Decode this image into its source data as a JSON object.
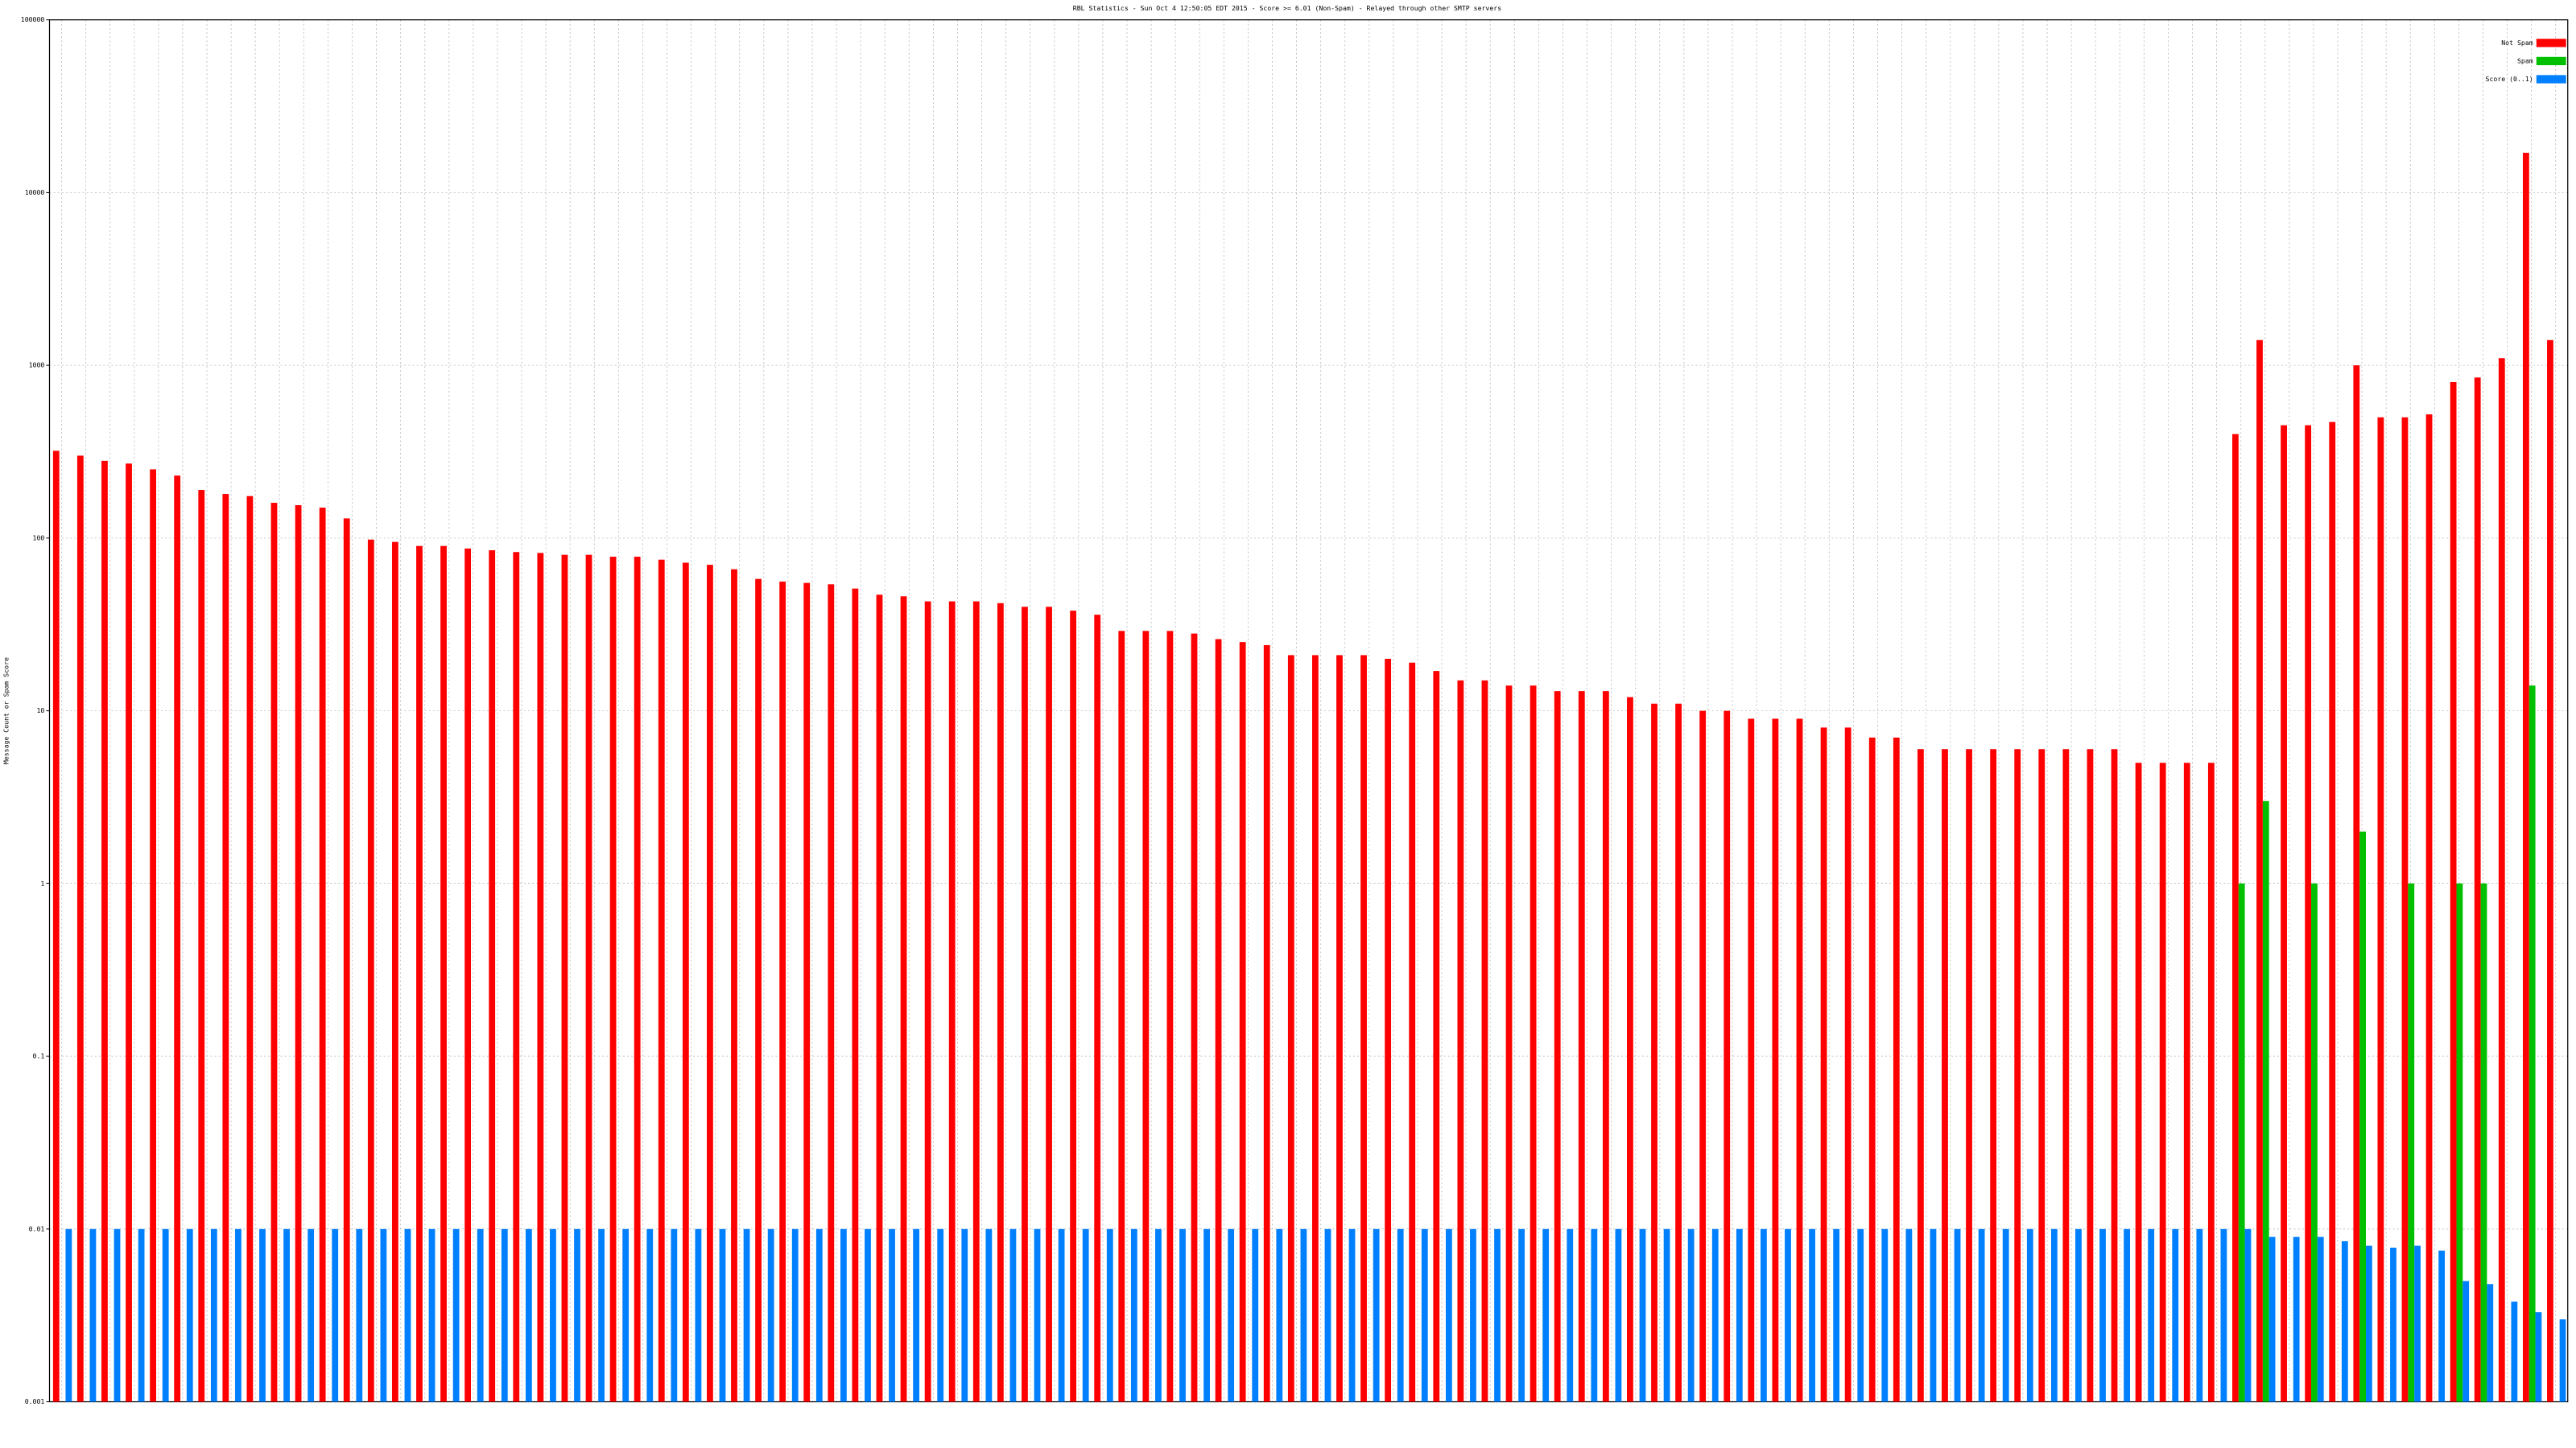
{
  "chart_data": {
    "type": "bar",
    "log_y": true,
    "grid": true,
    "legend": "upper right",
    "title": "RBL Statistics - Sun Oct  4 12:50:05 EDT 2015 - Score >= 6.01 (Non-Spam) - Relayed through other SMTP servers",
    "y_label": "Message Count or Spam Score",
    "ylim": [
      0.001,
      100000
    ],
    "yticks": [
      0.001,
      0.01,
      0.1,
      1,
      10,
      100,
      1000,
      10000,
      100000
    ],
    "categories": [
      null,
      null,
      null,
      null,
      null,
      null,
      null,
      null,
      null,
      null,
      null,
      null,
      null,
      null,
      null,
      null,
      null,
      null,
      null,
      null,
      null,
      null,
      null,
      null,
      null,
      null,
      null,
      null,
      null,
      null,
      null,
      null,
      null,
      null,
      null,
      null,
      null,
      null,
      null,
      null,
      null,
      null,
      null,
      null,
      null,
      null,
      null,
      null,
      null,
      null,
      null,
      null,
      null,
      null,
      null,
      null,
      null,
      null,
      null,
      null,
      null,
      null,
      null,
      null,
      null,
      null,
      null,
      null,
      null,
      null,
      null,
      null,
      null,
      null,
      null,
      null,
      null,
      null,
      null,
      null,
      null,
      null,
      null,
      null,
      null,
      null,
      null,
      null,
      null,
      null,
      null,
      null,
      null,
      null,
      null,
      null,
      null,
      null,
      null,
      null,
      null,
      null,
      null,
      null
    ],
    "series": [
      {
        "name": "Not Spam",
        "color": "#ff0000",
        "values": [
          320,
          300,
          280,
          270,
          250,
          230,
          190,
          180,
          175,
          160,
          155,
          150,
          130,
          98,
          95,
          90,
          90,
          87,
          85,
          83,
          82,
          80,
          80,
          78,
          78,
          75,
          72,
          70,
          66,
          58,
          56,
          55,
          54,
          51,
          47,
          46,
          43,
          43,
          43,
          42,
          40,
          40,
          38,
          36,
          29,
          29,
          29,
          28,
          26,
          25,
          24,
          21,
          21,
          21,
          21,
          20,
          19,
          17,
          15,
          15,
          14,
          14,
          13,
          13,
          13,
          12,
          11,
          11,
          10,
          10,
          9,
          9,
          9,
          8,
          8,
          7,
          7,
          6,
          6,
          6,
          6,
          6,
          6,
          6,
          6,
          6,
          5,
          5,
          5,
          5,
          400,
          1400,
          450,
          450,
          470,
          1000,
          500,
          500,
          520,
          800,
          850,
          1100,
          17000,
          1400
        ]
      },
      {
        "name": "Spam",
        "color": "#00c000",
        "values": [
          null,
          null,
          null,
          null,
          null,
          null,
          null,
          null,
          null,
          null,
          null,
          null,
          null,
          null,
          null,
          null,
          null,
          null,
          null,
          null,
          null,
          null,
          null,
          null,
          null,
          null,
          null,
          null,
          null,
          null,
          null,
          null,
          null,
          null,
          null,
          null,
          null,
          null,
          null,
          null,
          null,
          null,
          null,
          null,
          null,
          null,
          null,
          null,
          null,
          null,
          null,
          null,
          null,
          null,
          null,
          null,
          null,
          null,
          null,
          null,
          null,
          null,
          null,
          null,
          null,
          null,
          null,
          null,
          null,
          null,
          null,
          null,
          null,
          null,
          null,
          null,
          null,
          null,
          null,
          null,
          null,
          null,
          null,
          null,
          null,
          null,
          null,
          null,
          null,
          null,
          1,
          3,
          null,
          1,
          null,
          2,
          null,
          1,
          null,
          1,
          1,
          null,
          14,
          null
        ]
      },
      {
        "name": "Score (0..1)",
        "color": "#0080ff",
        "values": [
          0.01,
          0.01,
          0.01,
          0.01,
          0.01,
          0.01,
          0.01,
          0.01,
          0.01,
          0.01,
          0.01,
          0.01,
          0.01,
          0.01,
          0.01,
          0.01,
          0.01,
          0.01,
          0.01,
          0.01,
          0.01,
          0.01,
          0.01,
          0.01,
          0.01,
          0.01,
          0.01,
          0.01,
          0.01,
          0.01,
          0.01,
          0.01,
          0.01,
          0.01,
          0.01,
          0.01,
          0.01,
          0.01,
          0.01,
          0.01,
          0.01,
          0.01,
          0.01,
          0.01,
          0.01,
          0.01,
          0.01,
          0.01,
          0.01,
          0.01,
          0.01,
          0.01,
          0.01,
          0.01,
          0.01,
          0.01,
          0.01,
          0.01,
          0.01,
          0.01,
          0.01,
          0.01,
          0.01,
          0.01,
          0.01,
          0.01,
          0.01,
          0.01,
          0.01,
          0.01,
          0.01,
          0.01,
          0.01,
          0.01,
          0.01,
          0.01,
          0.01,
          0.01,
          0.01,
          0.01,
          0.01,
          0.01,
          0.01,
          0.01,
          0.01,
          0.01,
          0.01,
          0.01,
          0.01,
          0.01,
          0.01,
          0.009,
          0.009,
          0.009,
          0.0085,
          0.008,
          0.0078,
          0.008,
          0.0075,
          0.005,
          0.0048,
          0.0038,
          0.0033,
          0.003
        ]
      }
    ]
  }
}
